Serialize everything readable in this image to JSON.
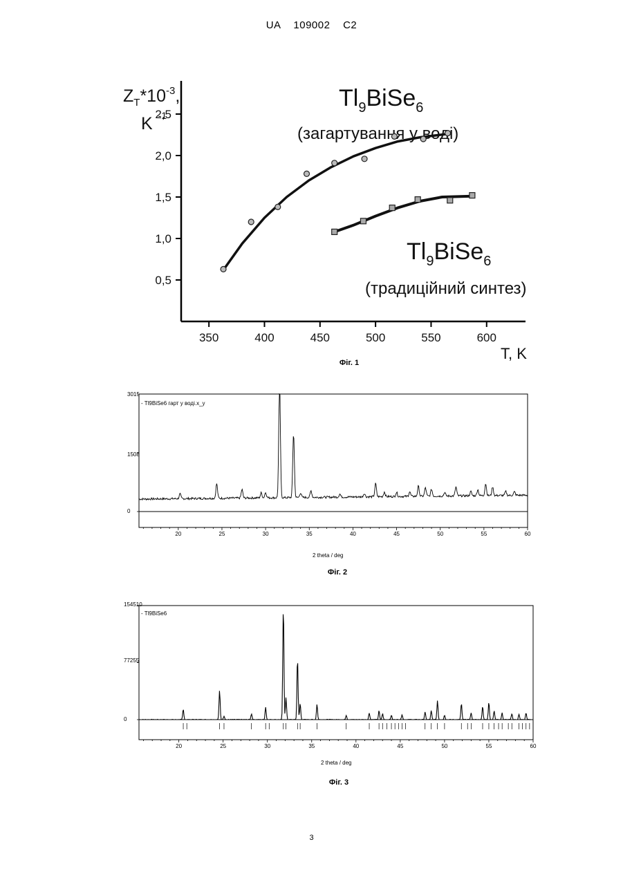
{
  "header": {
    "text": "UA   109002   C2"
  },
  "page_number": "3",
  "fig1": {
    "caption": "Фіг. 1",
    "ylabel_main": "Z",
    "ylabel_sub": "T",
    "ylabel_mid": "*10",
    "ylabel_exp": "-3",
    "ylabel_comma": ",",
    "ylabel_unit": "K",
    "ylabel_unit_exp": "-1",
    "xlabel": "T, K",
    "series_a_formula": {
      "p1": "Tl",
      "s1": "9",
      "p2": "BiSe",
      "s2": "6"
    },
    "series_a_note": "(загартування у воді)",
    "series_b_formula": {
      "p1": "Tl",
      "s1": "9",
      "p2": "BiSe",
      "s2": "6"
    },
    "series_b_note": "(традиційний синтез)"
  },
  "fig2": {
    "caption": "Фіг. 2",
    "legend": "- Tl9BiSe6 гарт у воді.х_y",
    "ymax_label": "3015",
    "ymid_label": "1508",
    "yzero_label": "0",
    "xlabel": "2 theta / deg"
  },
  "fig3": {
    "caption": "Фіг. 3",
    "legend": "- Tl9BiSe6",
    "ymax_label": "154510",
    "ymid_label": "77255",
    "yzero_label": "0",
    "xlabel": "2 theta / deg"
  },
  "chart_data": [
    {
      "type": "scatter",
      "title": "",
      "xlabel": "T, K",
      "ylabel": "ZT*10-3, K-1",
      "xlim": [
        325,
        635
      ],
      "ylim": [
        0,
        2.9
      ],
      "xticks": [
        "350",
        "400",
        "450",
        "500",
        "550",
        "600"
      ],
      "yticks": [
        "0,5",
        "1,0",
        "1,5",
        "2,0",
        "2,5"
      ],
      "grid": false,
      "series": [
        {
          "name": "Tl9BiSe6 (загартування у воді)",
          "marker": "circle",
          "x": [
            363,
            388,
            412,
            438,
            463,
            490,
            517,
            543,
            565
          ],
          "y": [
            0.63,
            1.2,
            1.38,
            1.78,
            1.91,
            1.96,
            2.23,
            2.2,
            2.27
          ],
          "fit_x": [
            363,
            380,
            400,
            420,
            440,
            460,
            480,
            500,
            520,
            540,
            565
          ],
          "fit_y": [
            0.62,
            0.94,
            1.25,
            1.5,
            1.7,
            1.86,
            1.99,
            2.09,
            2.17,
            2.22,
            2.26
          ]
        },
        {
          "name": "Tl9BiSe6 (традиційний синтез)",
          "marker": "square",
          "x": [
            463,
            489,
            515,
            538,
            567,
            587
          ],
          "y": [
            1.08,
            1.21,
            1.37,
            1.47,
            1.46,
            1.52
          ],
          "fit_x": [
            463,
            480,
            500,
            520,
            540,
            560,
            587
          ],
          "fit_y": [
            1.08,
            1.16,
            1.27,
            1.37,
            1.45,
            1.5,
            1.51
          ]
        }
      ]
    },
    {
      "type": "line",
      "title": "",
      "xlabel": "2 theta / deg",
      "ylabel": "",
      "xlim": [
        15.5,
        60
      ],
      "ylim": [
        0,
        3015
      ],
      "xticks": [
        "20",
        "25",
        "30",
        "35",
        "40",
        "45",
        "50",
        "55",
        "60"
      ],
      "yticks": [
        "0",
        "1508",
        "3015"
      ],
      "series": [
        {
          "name": "- Tl9BiSe6 гарт у воді.х_y",
          "baseline": 320,
          "baseline_end": 420,
          "peaks": [
            [
              20.2,
              120
            ],
            [
              24.4,
              380
            ],
            [
              27.3,
              220
            ],
            [
              29.5,
              130
            ],
            [
              30.0,
              140
            ],
            [
              31.6,
              3015
            ],
            [
              33.2,
              1650
            ],
            [
              34.0,
              120
            ],
            [
              35.2,
              170
            ],
            [
              38.5,
              80
            ],
            [
              41.3,
              90
            ],
            [
              42.6,
              340
            ],
            [
              43.6,
              120
            ],
            [
              45.0,
              110
            ],
            [
              46.5,
              120
            ],
            [
              47.5,
              260
            ],
            [
              48.3,
              220
            ],
            [
              49.0,
              180
            ],
            [
              50.5,
              90
            ],
            [
              51.8,
              230
            ],
            [
              53.5,
              110
            ],
            [
              54.3,
              160
            ],
            [
              55.2,
              310
            ],
            [
              56.0,
              220
            ],
            [
              57.5,
              100
            ],
            [
              58.5,
              90
            ]
          ]
        }
      ]
    },
    {
      "type": "line",
      "title": "",
      "xlabel": "2 theta / deg",
      "ylabel": "",
      "xlim": [
        15.5,
        60
      ],
      "ylim": [
        0,
        154510
      ],
      "xticks": [
        "20",
        "25",
        "30",
        "35",
        "40",
        "45",
        "50",
        "55",
        "60"
      ],
      "yticks": [
        "0",
        "77255",
        "154510"
      ],
      "series": [
        {
          "name": "- Tl9BiSe6",
          "baseline": 0,
          "peaks": [
            [
              20.5,
              14000
            ],
            [
              24.6,
              39000
            ],
            [
              25.1,
              5000
            ],
            [
              28.2,
              8000
            ],
            [
              29.8,
              17000
            ],
            [
              31.8,
              154510
            ],
            [
              32.1,
              30000
            ],
            [
              33.4,
              84000
            ],
            [
              33.7,
              22000
            ],
            [
              35.6,
              21000
            ],
            [
              38.9,
              6000
            ],
            [
              41.5,
              9000
            ],
            [
              42.6,
              12000
            ],
            [
              43.0,
              8000
            ],
            [
              44.0,
              6000
            ],
            [
              45.2,
              7000
            ],
            [
              47.8,
              10000
            ],
            [
              48.5,
              12000
            ],
            [
              49.2,
              26000
            ],
            [
              50.0,
              6000
            ],
            [
              51.9,
              22000
            ],
            [
              53.0,
              9000
            ],
            [
              54.3,
              18000
            ],
            [
              55.0,
              24000
            ],
            [
              55.6,
              12000
            ],
            [
              56.5,
              9000
            ],
            [
              57.6,
              8000
            ],
            [
              58.4,
              7000
            ],
            [
              59.2,
              9000
            ]
          ],
          "reflections": [
            20.5,
            20.9,
            24.6,
            25.1,
            28.2,
            29.8,
            30.2,
            31.8,
            32.1,
            33.4,
            33.7,
            35.6,
            38.9,
            41.5,
            42.6,
            43.0,
            43.5,
            44.0,
            44.4,
            44.8,
            45.2,
            45.6,
            47.8,
            48.5,
            49.2,
            50.0,
            51.9,
            52.6,
            53.0,
            54.3,
            55.0,
            55.6,
            56.1,
            56.5,
            57.2,
            57.6,
            58.4,
            58.8,
            59.2,
            59.6
          ]
        }
      ]
    }
  ]
}
